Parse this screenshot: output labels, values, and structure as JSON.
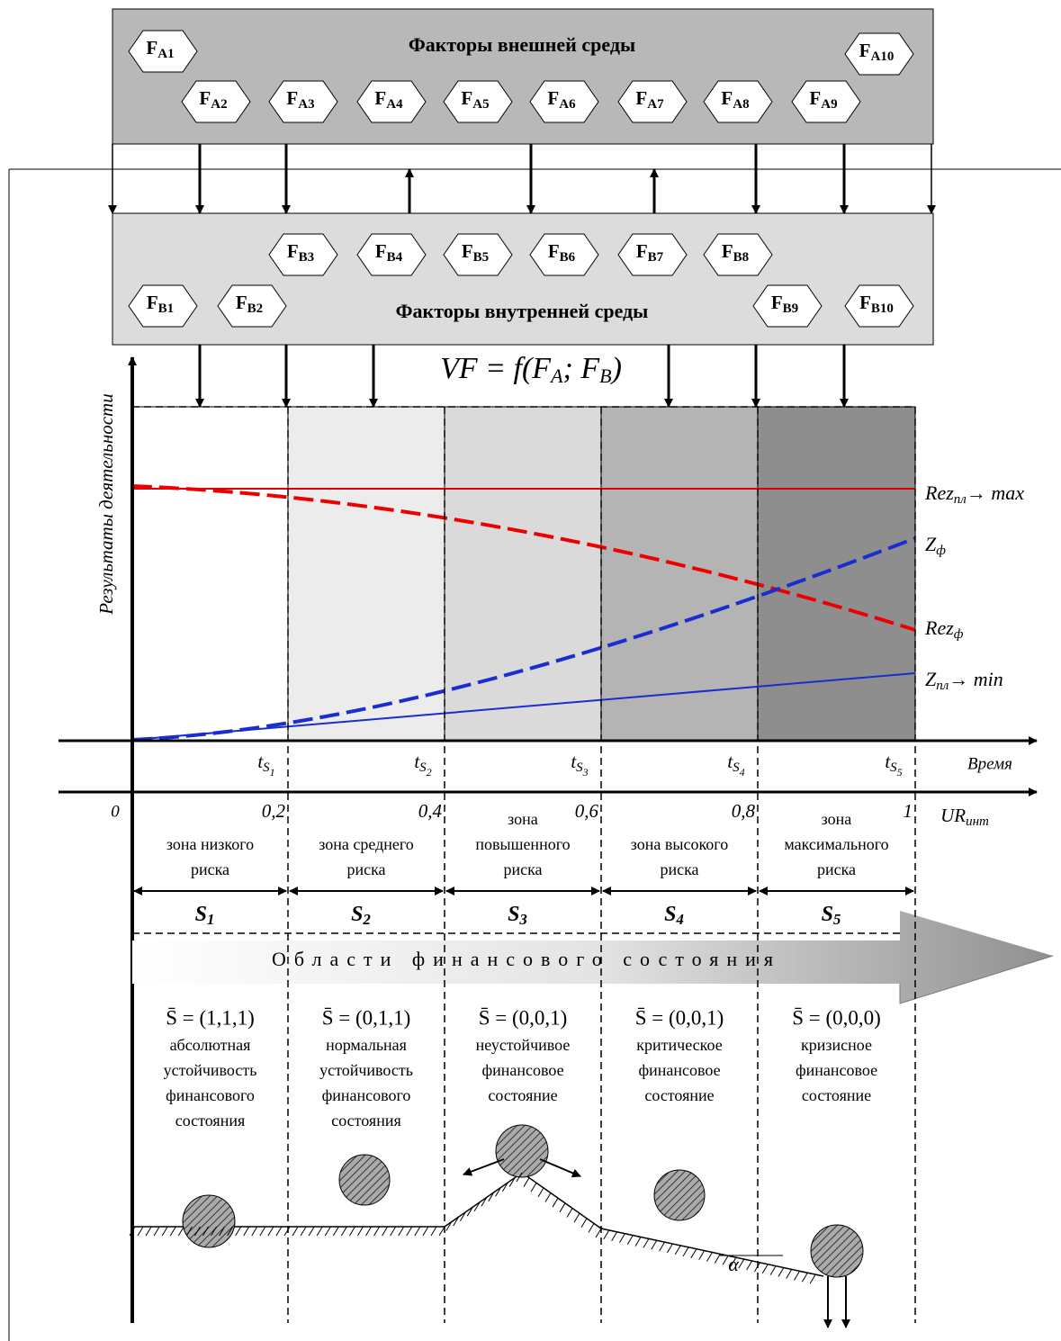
{
  "external": {
    "title": "Факторы внешней среды",
    "factors": [
      {
        "base": "F",
        "sub": "A1"
      },
      {
        "base": "F",
        "sub": "A2"
      },
      {
        "base": "F",
        "sub": "A3"
      },
      {
        "base": "F",
        "sub": "A4"
      },
      {
        "base": "F",
        "sub": "A5"
      },
      {
        "base": "F",
        "sub": "A6"
      },
      {
        "base": "F",
        "sub": "A7"
      },
      {
        "base": "F",
        "sub": "A8"
      },
      {
        "base": "F",
        "sub": "A9"
      },
      {
        "base": "F",
        "sub": "A10"
      }
    ]
  },
  "internal": {
    "title": "Факторы внутренней среды",
    "factors": [
      {
        "base": "F",
        "sub": "B1"
      },
      {
        "base": "F",
        "sub": "B2"
      },
      {
        "base": "F",
        "sub": "B3"
      },
      {
        "base": "F",
        "sub": "B4"
      },
      {
        "base": "F",
        "sub": "B5"
      },
      {
        "base": "F",
        "sub": "B6"
      },
      {
        "base": "F",
        "sub": "B7"
      },
      {
        "base": "F",
        "sub": "B8"
      },
      {
        "base": "F",
        "sub": "B9"
      },
      {
        "base": "F",
        "sub": "B10"
      }
    ]
  },
  "formula": [
    {
      "t": "VF = f(F"
    },
    {
      "t": "A",
      "sub": true
    },
    {
      "t": "; F"
    },
    {
      "t": "B",
      "sub": true
    },
    {
      "t": ")"
    }
  ],
  "y_axis_label": "Результаты деятельности",
  "curves": [
    {
      "base": "Rez",
      "sub": "пл",
      "suffix": "→ max"
    },
    {
      "base": "Z",
      "sub": "ф"
    },
    {
      "base": "Rez",
      "sub": "ф"
    },
    {
      "base": "Z",
      "sub": "пл",
      "suffix": "→ min"
    }
  ],
  "time_axis": {
    "label": "Время",
    "origin": "0"
  },
  "ur_axis": {
    "base": "UR",
    "sub": "инт"
  },
  "zones": [
    {
      "name": [
        "зона низкого",
        "риска"
      ],
      "ur": "0,2",
      "t": {
        "base": "t",
        "sub": "S",
        "subsub": "1"
      },
      "s": {
        "base": "S",
        "sub": "1"
      },
      "state": "S̄ = (1,1,1)",
      "desc": [
        "абсолютная",
        "устойчивость",
        "финансового",
        "состояния"
      ]
    },
    {
      "name": [
        "зона среднего",
        "риска"
      ],
      "ur": "0,4",
      "t": {
        "base": "t",
        "sub": "S",
        "subsub": "2"
      },
      "s": {
        "base": "S",
        "sub": "2"
      },
      "state": "S̄ = (0,1,1)",
      "desc": [
        "нормальная",
        "устойчивость",
        "финансового",
        "состояния"
      ]
    },
    {
      "name": [
        "зона",
        "повышенного",
        "риска"
      ],
      "ur": "0,6",
      "t": {
        "base": "t",
        "sub": "S",
        "subsub": "3"
      },
      "s": {
        "base": "S",
        "sub": "3"
      },
      "state": "S̄ = (0,0,1)",
      "desc": [
        "неустойчивое",
        "финансовое",
        "состояние"
      ]
    },
    {
      "name": [
        "зона высокого",
        "риска"
      ],
      "ur": "0,8",
      "t": {
        "base": "t",
        "sub": "S",
        "subsub": "4"
      },
      "s": {
        "base": "S",
        "sub": "4"
      },
      "state": "S̄ = (0,0,1)",
      "desc": [
        "критическое",
        "финансовое",
        "состояние"
      ]
    },
    {
      "name": [
        "зона",
        "максимального",
        "риска"
      ],
      "ur": "1",
      "t": {
        "base": "t",
        "sub": "S",
        "subsub": "5"
      },
      "s": {
        "base": "S",
        "sub": "5"
      },
      "state": "S̄ = (0,0,0)",
      "desc": [
        "кризисное",
        "финансовое",
        "состояние"
      ]
    }
  ],
  "banner": "Области финансового состояния",
  "angle": "α"
}
